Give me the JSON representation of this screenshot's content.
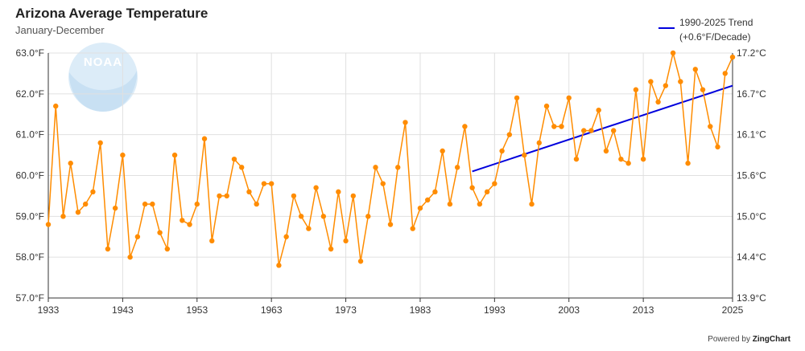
{
  "title": "Arizona Average Temperature",
  "subtitle": "January-December",
  "legend": {
    "line1": "1990-2025 Trend",
    "line2": "(+0.6°F/Decade)"
  },
  "credit": {
    "prefix": "Powered by",
    "brand": "ZingChart"
  },
  "logo": {
    "text": "NOAA"
  },
  "colors": {
    "series": "#ff8c00",
    "trend": "#0000dd",
    "grid": "#e0e0e0"
  },
  "chart_data": {
    "type": "line",
    "title": "Arizona Average Temperature",
    "subtitle": "January-December",
    "x_ticks": [
      "1933",
      "1943",
      "1953",
      "1963",
      "1973",
      "1983",
      "1993",
      "2003",
      "2013",
      "2025"
    ],
    "y_left_ticks": [
      "57.0°F",
      "58.0°F",
      "59.0°F",
      "60.0°F",
      "61.0°F",
      "62.0°F",
      "63.0°F"
    ],
    "y_right_ticks": [
      "13.9°C",
      "14.4°C",
      "15.0°C",
      "15.6°C",
      "16.1°C",
      "16.7°C",
      "17.2°C"
    ],
    "xlim": [
      1933,
      2025
    ],
    "ylim": [
      57,
      63
    ],
    "grid": true,
    "legend_position": "top-right",
    "series": [
      {
        "years": [
          1933,
          1934,
          1935,
          1936,
          1937,
          1938,
          1939,
          1940,
          1941,
          1942,
          1943,
          1944,
          1945,
          1946,
          1947,
          1948,
          1949,
          1950,
          1951,
          1952,
          1953,
          1954,
          1955,
          1956,
          1957,
          1958,
          1959,
          1960,
          1961,
          1962,
          1963,
          1964,
          1965,
          1966,
          1967,
          1968,
          1969,
          1970,
          1971,
          1972,
          1973,
          1974,
          1975,
          1976,
          1977,
          1978,
          1979,
          1980,
          1981,
          1982,
          1983,
          1984,
          1985,
          1986,
          1987,
          1988,
          1989,
          1990,
          1991,
          1992,
          1993,
          1994,
          1995,
          1996,
          1997,
          1998,
          1999,
          2000,
          2001,
          2002,
          2003,
          2004,
          2005,
          2006,
          2007,
          2008,
          2009,
          2010,
          2011,
          2012,
          2013,
          2014,
          2015,
          2016,
          2017,
          2018,
          2019,
          2020,
          2021,
          2022,
          2023,
          2024,
          2025
        ],
        "values": [
          58.8,
          61.7,
          59.0,
          60.3,
          59.1,
          59.3,
          59.6,
          60.8,
          58.2,
          59.2,
          60.5,
          58.0,
          58.5,
          59.3,
          59.3,
          58.6,
          58.2,
          60.5,
          58.9,
          58.8,
          59.3,
          60.9,
          58.4,
          59.5,
          59.5,
          60.4,
          60.2,
          59.6,
          59.3,
          59.8,
          59.8,
          57.8,
          58.5,
          59.5,
          59.0,
          58.7,
          59.7,
          59.0,
          58.2,
          59.6,
          58.4,
          59.5,
          57.9,
          59.0,
          60.2,
          59.8,
          58.8,
          60.2,
          61.3,
          58.7,
          59.2,
          59.4,
          59.6,
          60.6,
          59.3,
          60.2,
          61.2,
          59.7,
          59.3,
          59.6,
          59.8,
          60.6,
          61.0,
          61.9,
          60.5,
          59.3,
          60.8,
          61.7,
          61.2,
          61.2,
          61.9,
          60.4,
          61.1,
          61.1,
          61.6,
          60.6,
          61.1,
          60.4,
          60.3,
          62.1,
          60.4,
          62.3,
          61.8,
          62.2,
          63.0,
          62.3,
          60.3,
          62.6,
          62.1,
          61.2,
          60.7,
          62.5,
          62.9
        ]
      },
      {
        "name": "1990-2025 Trend (+0.6°F/Decade)",
        "x": [
          1990,
          2025
        ],
        "values": [
          60.1,
          62.2
        ]
      }
    ]
  }
}
